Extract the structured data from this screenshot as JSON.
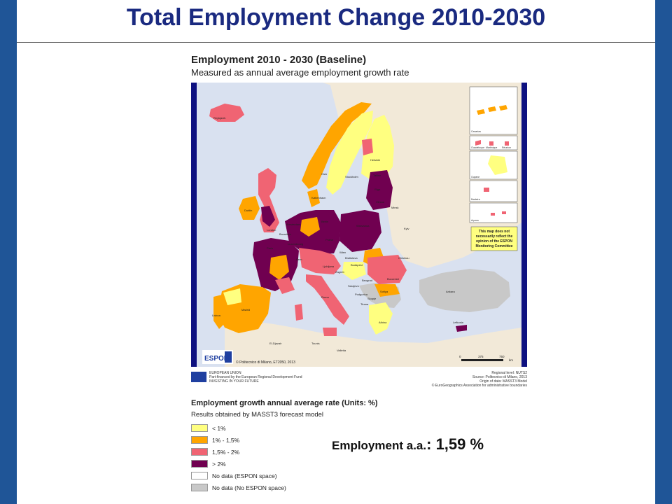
{
  "slide": {
    "title": "Total Employment Change 2010-2030"
  },
  "map": {
    "title": "Employment 2010 - 2030 (Baseline)",
    "subtitle": "Measured as annual average employment growth rate",
    "disclaimer": [
      "This map does not",
      "necessarily reflect the",
      "opinion of the ESPON",
      "Monitoring Committee"
    ],
    "inset_labels": [
      "Canarias",
      "Guadeloupe",
      "Martinique",
      "Réunion",
      "Guyane",
      "Madeira",
      "Açores"
    ],
    "city_labels": [
      "Reykjavík",
      "Helsinki",
      "Oslo",
      "Stockholm",
      "Tallinn",
      "Riga",
      "Vilnius",
      "Minsk",
      "København",
      "Dublin",
      "London",
      "Amsterdam",
      "Bruxelles",
      "Berlin",
      "Warszawa",
      "Kyiv",
      "Praha",
      "Paris",
      "Luxembourg",
      "Bern",
      "Wien",
      "Bratislava",
      "Budapest",
      "Chisinau",
      "Ljubljana",
      "Zagreb",
      "Beograd",
      "Bucuresti",
      "Sarajevo",
      "Sofiya",
      "Podgorica",
      "Skopje",
      "Tirana",
      "Ankara",
      "Lisboa",
      "Madrid",
      "Roma",
      "Athina",
      "El-Djazair",
      "Tounis",
      "Valletta",
      "Lefkosia"
    ],
    "espon_logo": "ESPON",
    "copyright": "© Politecnico di Milano, ET2050, 2013",
    "scale": {
      "labels": [
        "0",
        "375",
        "750"
      ],
      "unit": "km"
    },
    "eu_text": [
      "EUROPEAN UNION",
      "Part-financed by the European Regional Development Fund",
      "INVESTING IN YOUR FUTURE"
    ],
    "credits": [
      "Regional level: NUTS2",
      "Source: Politecnico di Milano, 2013",
      "Origin of data: MASST3 Model",
      "© EuroGeographics Association for administrative boundaries"
    ]
  },
  "colors": {
    "lt1": "#ffff80",
    "1to1_5": "#ffa500",
    "1_5to2": "#f06473",
    "gt2": "#700050",
    "nodata_espon": "#ffffff",
    "nodata_noespon": "#c8c8c8",
    "sea": "#d9e1f0",
    "land_other": "#f2e9d8",
    "frame": "#0e1180",
    "sidebar": "#1f5597",
    "title": "#1a2a80"
  },
  "legend": {
    "title": "Employment growth annual average rate (Units: %)",
    "subtitle": "Results obtained by MASST3 forecast model",
    "items": [
      {
        "label": "< 1%",
        "color": "#ffff80"
      },
      {
        "label": "1% - 1,5%",
        "color": "#ffa500"
      },
      {
        "label": "1,5% - 2%",
        "color": "#f06473"
      },
      {
        "label": "> 2%",
        "color": "#700050"
      },
      {
        "label": "No data (ESPON space)",
        "color": "#ffffff"
      },
      {
        "label": "No data (No ESPON space)",
        "color": "#c8c8c8"
      }
    ]
  },
  "highlight": {
    "label": "Employment a.a.",
    "colon": ": ",
    "value": "1,59 %"
  }
}
